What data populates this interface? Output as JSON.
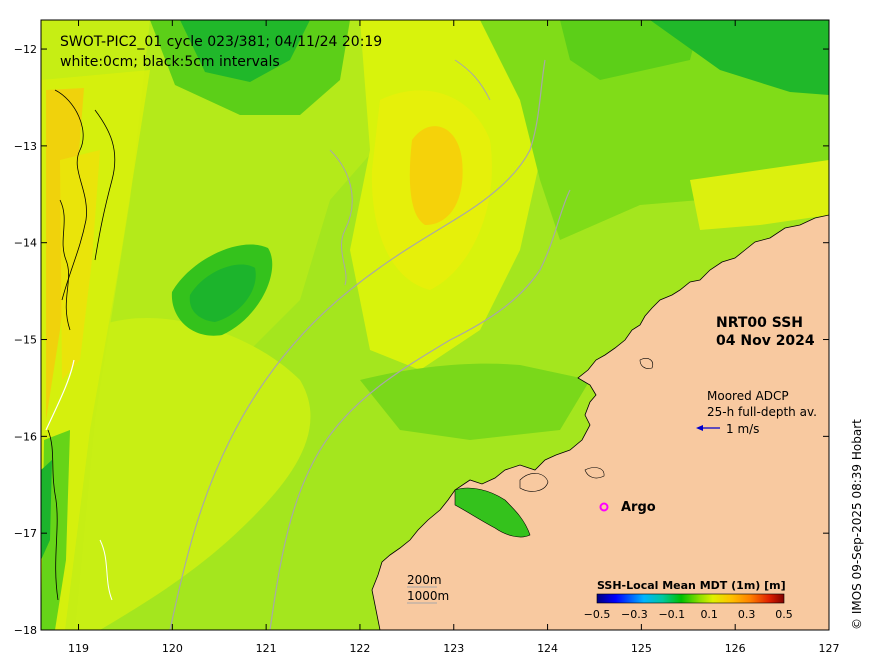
{
  "title": {
    "line1": "SWOT-PIC2_01 cycle 023/381; 04/11/24 20:19",
    "line2": "white:0cm; black:5cm intervals"
  },
  "product": {
    "name": "NRT00 SSH",
    "date": "04 Nov 2024"
  },
  "adcp": {
    "line1": "Moored ADCP",
    "line2": "25-h full-depth av.",
    "scale_label": "1 m/s"
  },
  "argo_label": "Argo",
  "isobaths": {
    "shallow": "200m",
    "deep": "1000m"
  },
  "colorbar": {
    "title": "SSH-Local Mean MDT (1m) [m]",
    "tick_labels": [
      "−0.5",
      "−0.3",
      "−0.1",
      "0.1",
      "0.3",
      "0.5"
    ],
    "range": [
      -0.5,
      0.5
    ]
  },
  "axes": {
    "x_ticks": [
      "119",
      "120",
      "121",
      "122",
      "123",
      "124",
      "125",
      "126",
      "127"
    ],
    "y_ticks": [
      "−12",
      "−13",
      "−14",
      "−15",
      "−16",
      "−17",
      "−18"
    ],
    "lon_range": [
      118.6,
      127
    ],
    "lat_range": [
      -18,
      -11.7
    ]
  },
  "credit": "© IMOS 09-Sep-2025 08:39 Hobart",
  "colors": {
    "land": "#f8c9a0",
    "argo": "#ff00ff",
    "adcp_vector": "#0000cc",
    "isobath": "#a8a8a8"
  }
}
